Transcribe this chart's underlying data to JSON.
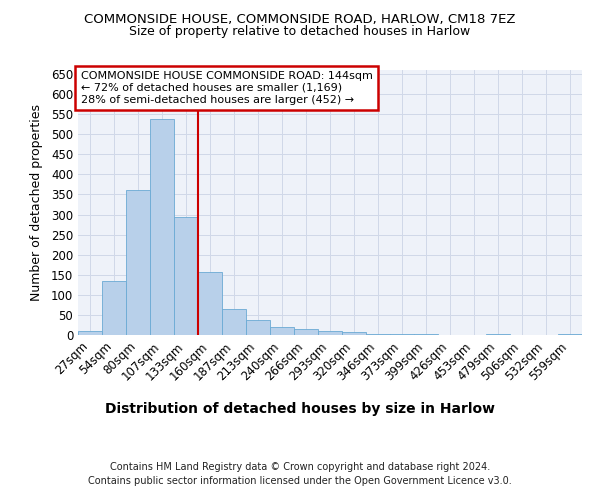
{
  "title1": "COMMONSIDE HOUSE, COMMONSIDE ROAD, HARLOW, CM18 7EZ",
  "title2": "Size of property relative to detached houses in Harlow",
  "xlabel": "Distribution of detached houses by size in Harlow",
  "ylabel": "Number of detached properties",
  "categories": [
    "27sqm",
    "54sqm",
    "80sqm",
    "107sqm",
    "133sqm",
    "160sqm",
    "187sqm",
    "213sqm",
    "240sqm",
    "266sqm",
    "293sqm",
    "320sqm",
    "346sqm",
    "373sqm",
    "399sqm",
    "426sqm",
    "453sqm",
    "479sqm",
    "506sqm",
    "532sqm",
    "559sqm"
  ],
  "values": [
    10,
    135,
    362,
    537,
    295,
    158,
    65,
    37,
    20,
    14,
    10,
    8,
    3,
    3,
    3,
    0,
    0,
    3,
    0,
    0,
    3
  ],
  "bar_color": "#b8d0ea",
  "bar_edge_color": "#6aaad4",
  "vline_color": "#cc0000",
  "annotation_title": "COMMONSIDE HOUSE COMMONSIDE ROAD: 144sqm",
  "annotation_line1": "← 72% of detached houses are smaller (1,169)",
  "annotation_line2": "28% of semi-detached houses are larger (452) →",
  "annotation_box_color": "white",
  "annotation_box_edge": "#cc0000",
  "ylim": [
    0,
    660
  ],
  "yticks": [
    0,
    50,
    100,
    150,
    200,
    250,
    300,
    350,
    400,
    450,
    500,
    550,
    600,
    650
  ],
  "footer1": "Contains HM Land Registry data © Crown copyright and database right 2024.",
  "footer2": "Contains public sector information licensed under the Open Government Licence v3.0.",
  "background_color": "#eef2f9",
  "grid_color": "#d0d8e8"
}
